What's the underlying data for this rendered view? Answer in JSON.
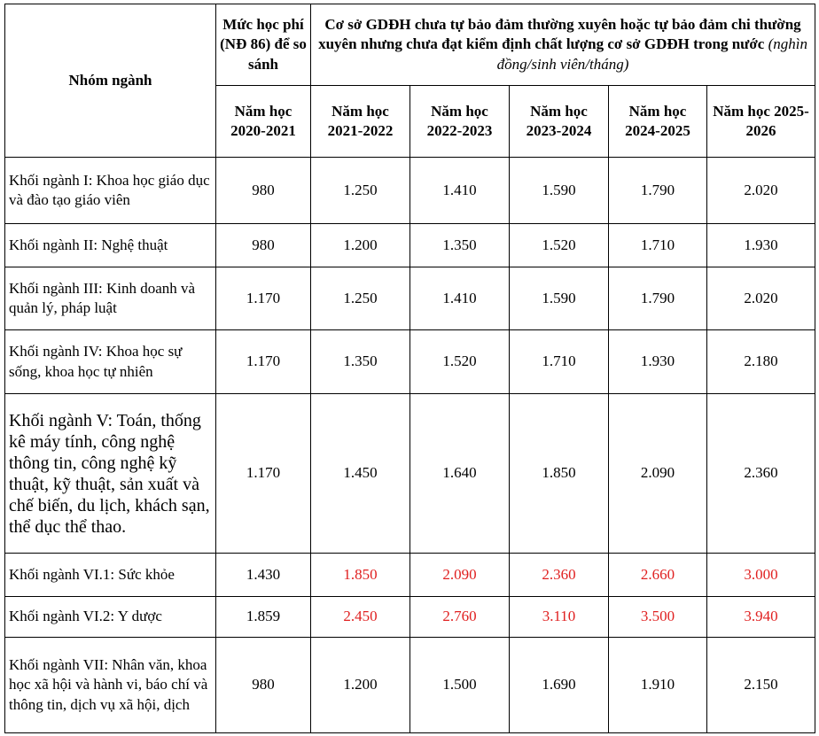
{
  "header": {
    "group_label": "Nhóm ngành",
    "fee_label": "Mức học phí (NĐ 86) để so sánh",
    "main_title": "Cơ sở GDĐH chưa tự bảo đảm thường xuyên hoặc tự bảo đảm chi thường xuyên nhưng chưa đạt kiểm định chất lượng cơ sở GDĐH trong nước",
    "unit": "(nghìn đồng/sinh viên/tháng)",
    "base_year": "Năm học 2020-2021",
    "years": [
      "Năm học 2021-2022",
      "Năm học 2022-2023",
      "Năm học 2023-2024",
      "Năm học 2024-2025",
      "Năm học 2025-2026"
    ]
  },
  "table": {
    "highlight_color": "#e02020",
    "rows": [
      {
        "name": "Khối ngành I: Khoa học giáo dục và đào tạo giáo viên",
        "values": [
          "980",
          "1.250",
          "1.410",
          "1.590",
          "1.790",
          "2.020"
        ]
      },
      {
        "name": "Khối ngành II: Nghệ thuật",
        "values": [
          "980",
          "1.200",
          "1.350",
          "1.520",
          "1.710",
          "1.930"
        ]
      },
      {
        "name": "Khối ngành III: Kinh doanh và quản lý, pháp luật",
        "values": [
          "1.170",
          "1.250",
          "1.410",
          "1.590",
          "1.790",
          "2.020"
        ]
      },
      {
        "name": "Khối ngành IV: Khoa học sự sống, khoa học tự nhiên",
        "values": [
          "1.170",
          "1.350",
          "1.520",
          "1.710",
          "1.930",
          "2.180"
        ]
      },
      {
        "name": "Khối ngành V: Toán, thống kê máy tính, công nghệ thông tin, công nghệ kỹ thuật, kỹ thuật, sản xuất và chế biến, du lịch, khách sạn, thể dục thể thao.",
        "values": [
          "1.170",
          "1.450",
          "1.640",
          "1.850",
          "2.090",
          "2.360"
        ],
        "large": true
      },
      {
        "name": "Khối ngành VI.1: Sức khỏe",
        "values": [
          "1.430",
          "1.850",
          "2.090",
          "2.360",
          "2.660",
          "3.000"
        ],
        "highlight": true
      },
      {
        "name": "Khối ngành VI.2: Y dược",
        "values": [
          "1.859",
          "2.450",
          "2.760",
          "3.110",
          "3.500",
          "3.940"
        ],
        "highlight": true
      },
      {
        "name": "Khối ngành VII: Nhân văn, khoa học xã hội và hành vi, báo chí và thông tin, dịch vụ xã hội, dịch",
        "values": [
          "980",
          "1.200",
          "1.500",
          "1.690",
          "1.910",
          "2.150"
        ]
      }
    ]
  }
}
